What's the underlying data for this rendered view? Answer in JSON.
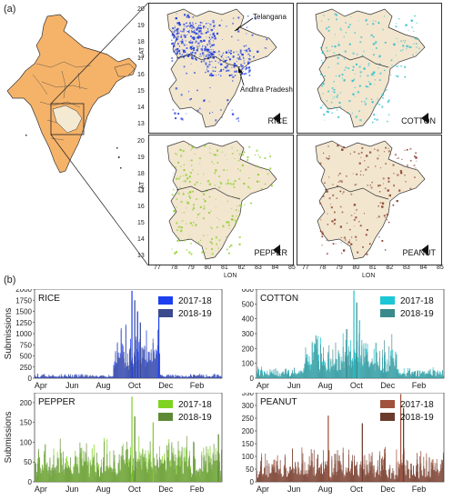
{
  "panel_a_label": "(a)",
  "panel_b_label": "(b)",
  "map_annotations": {
    "telangana": "Telangana",
    "andhra": "Andhra Pradesh"
  },
  "map_axes": {
    "lat_label": "LAT",
    "lon_label": "LON",
    "lat_ticks": [
      "20",
      "19",
      "18",
      "17",
      "16",
      "15",
      "14",
      "13"
    ],
    "lon_ticks": [
      "77",
      "78",
      "79",
      "80",
      "81",
      "82",
      "83",
      "84",
      "85"
    ]
  },
  "maps": [
    {
      "crop": "RICE",
      "color": "#1f3fe0"
    },
    {
      "crop": "COTTON",
      "color": "#2bbfcf"
    },
    {
      "crop": "PEPPER",
      "color": "#8ccf2a"
    },
    {
      "crop": "PEANUT",
      "color": "#8a3e2c"
    }
  ],
  "chart_data": [
    {
      "type": "bar",
      "title": "RICE",
      "ylabel": "Submissions",
      "ylim": [
        0,
        2000
      ],
      "yticks": [
        "0",
        "250",
        "500",
        "750",
        "1000",
        "1250",
        "1500",
        "1750",
        "2000"
      ],
      "xticks": [
        "Apr",
        "Jun",
        "Aug",
        "Oct",
        "Dec",
        "Feb"
      ],
      "series": [
        {
          "name": "2017-18",
          "color": "#1d3ff0"
        },
        {
          "name": "2018-19",
          "color": "#3b4a8f"
        }
      ],
      "peaks": [
        {
          "month": "Oct",
          "value": 1960
        },
        {
          "month": "Oct",
          "value": 1750
        },
        {
          "month": "Oct",
          "value": 1500
        },
        {
          "month": "Oct",
          "value": 1250
        },
        {
          "month": "Nov",
          "value": 1400
        }
      ]
    },
    {
      "type": "bar",
      "title": "COTTON",
      "ylabel": "",
      "ylim": [
        0,
        600
      ],
      "yticks": [
        "0",
        "100",
        "200",
        "300",
        "400",
        "500",
        "600"
      ],
      "xticks": [
        "Apr",
        "Jun",
        "Aug",
        "Oct",
        "Dec",
        "Feb"
      ],
      "series": [
        {
          "name": "2017-18",
          "color": "#1bc7d4"
        },
        {
          "name": "2018-19",
          "color": "#3a8a8c"
        }
      ],
      "peaks": [
        {
          "month": "Oct",
          "value": 590
        },
        {
          "month": "Oct",
          "value": 510
        },
        {
          "month": "Oct",
          "value": 390
        },
        {
          "month": "Sep",
          "value": 330
        }
      ]
    },
    {
      "type": "bar",
      "title": "PEPPER",
      "ylabel": "Submissions",
      "ylim": [
        0,
        225
      ],
      "yticks": [
        "0",
        "50",
        "100",
        "150",
        "200"
      ],
      "xticks": [
        "Apr",
        "Jun",
        "Aug",
        "Oct",
        "Dec",
        "Feb"
      ],
      "series": [
        {
          "name": "2017-18",
          "color": "#7ed321"
        },
        {
          "name": "2018-19",
          "color": "#5f8a35"
        }
      ],
      "peaks": [
        {
          "month": "Oct",
          "value": 215
        },
        {
          "month": "Oct",
          "value": 165
        },
        {
          "month": "Nov",
          "value": 150
        },
        {
          "month": "Mar",
          "value": 120
        }
      ]
    },
    {
      "type": "bar",
      "title": "PEANUT",
      "ylabel": "",
      "ylim": [
        0,
        350
      ],
      "yticks": [
        "0",
        "50",
        "100",
        "150",
        "200",
        "250",
        "300",
        "350"
      ],
      "xticks": [
        "Apr",
        "Jun",
        "Aug",
        "Oct",
        "Dec",
        "Feb"
      ],
      "series": [
        {
          "name": "2017-18",
          "color": "#a0523c"
        },
        {
          "name": "2018-19",
          "color": "#6b3a2c"
        }
      ],
      "peaks": [
        {
          "month": "Jan",
          "value": 345
        },
        {
          "month": "Jan",
          "value": 290
        },
        {
          "month": "Aug",
          "value": 260
        },
        {
          "month": "Oct",
          "value": 230
        }
      ]
    }
  ]
}
